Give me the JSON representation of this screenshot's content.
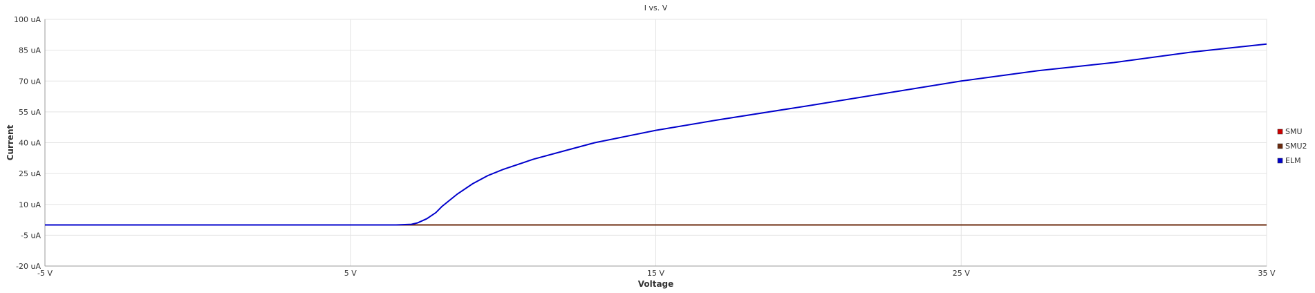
{
  "chart_data": {
    "type": "line",
    "title": "I vs. V",
    "xlabel": "Voltage",
    "ylabel": "Current",
    "xlim": [
      -5,
      35
    ],
    "ylim": [
      -20,
      100
    ],
    "x_ticks": [
      -5,
      5,
      15,
      25,
      35
    ],
    "x_tick_labels": [
      "-5 V",
      "5 V",
      "15 V",
      "25 V",
      "35 V"
    ],
    "y_ticks": [
      -20,
      -5,
      10,
      25,
      40,
      55,
      70,
      85,
      100
    ],
    "y_tick_labels": [
      "-20 uA",
      "-5 uA",
      "10 uA",
      "25 uA",
      "40 uA",
      "55 uA",
      "70 uA",
      "85 uA",
      "100 uA"
    ],
    "grid": true,
    "legend_position": "right",
    "series": [
      {
        "name": "SMU",
        "color": "#cc0000",
        "x": [
          -5,
          0,
          5,
          7,
          7.5,
          10,
          15,
          20,
          25,
          30,
          35
        ],
        "y": [
          0,
          0,
          0,
          0,
          0,
          0,
          0,
          0,
          0,
          0,
          0
        ]
      },
      {
        "name": "SMU2",
        "color": "#6b2a0e",
        "x": [
          -5,
          0,
          5,
          7,
          7.5,
          10,
          15,
          20,
          25,
          30,
          35
        ],
        "y": [
          0,
          0,
          0,
          0,
          0,
          0,
          0,
          0,
          0,
          0,
          0
        ]
      },
      {
        "name": "ELM",
        "color": "#0000cc",
        "x": [
          -5,
          0,
          5,
          6.5,
          7,
          7.2,
          7.5,
          7.8,
          8,
          8.5,
          9,
          9.5,
          10,
          11,
          12,
          13,
          14,
          15,
          17,
          20,
          22.5,
          25,
          27.5,
          30,
          32.5,
          35
        ],
        "y": [
          0,
          0,
          0,
          0,
          0.3,
          1,
          3,
          6,
          9,
          15,
          20,
          24,
          27,
          32,
          36,
          40,
          43,
          46,
          51,
          58,
          64,
          70,
          75,
          79,
          84,
          88
        ]
      }
    ]
  }
}
